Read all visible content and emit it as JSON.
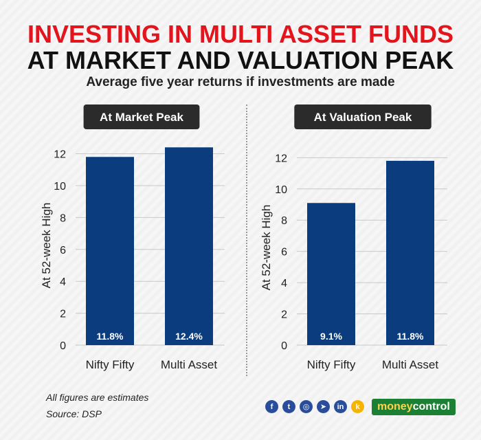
{
  "header": {
    "title_line1": "INVESTING IN MULTI ASSET FUNDS",
    "title_line2": "AT MARKET AND VALUATION PEAK",
    "subtitle": "Average five year returns if investments are made"
  },
  "chart_data": [
    {
      "type": "bar",
      "title": "At Market Peak",
      "ylabel": "At 52-week High",
      "categories": [
        "Nifty Fifty",
        "Multi Asset"
      ],
      "values": [
        11.8,
        12.4
      ],
      "value_labels": [
        "11.8%",
        "12.4%"
      ],
      "yticks": [
        "0",
        "2",
        "4",
        "6",
        "8",
        "10",
        "12"
      ],
      "ylim": [
        0,
        12.5
      ],
      "grid": true,
      "color": "#0b3d7e"
    },
    {
      "type": "bar",
      "title": "At Valuation Peak",
      "ylabel": "At 52-week High",
      "categories": [
        "Nifty Fifty",
        "Multi Asset"
      ],
      "values": [
        9.1,
        11.8
      ],
      "value_labels": [
        "9.1%",
        "11.8%"
      ],
      "yticks": [
        "0",
        "2",
        "4",
        "6",
        "8",
        "10",
        "12"
      ],
      "ylim": [
        0,
        12.5
      ],
      "grid": true,
      "color": "#0b3d7e"
    }
  ],
  "footer": {
    "note": "All figures are estimates",
    "source": "Source: DSP",
    "brand_money": "money",
    "brand_control": "control",
    "social_icons": [
      "facebook-icon",
      "twitter-icon",
      "instagram-icon",
      "telegram-icon",
      "linkedin-icon",
      "koo-icon"
    ]
  }
}
